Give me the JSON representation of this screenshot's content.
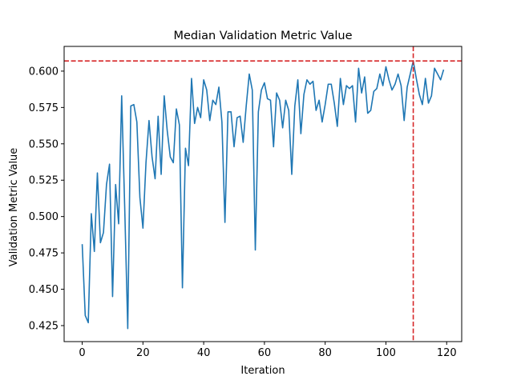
{
  "chart_data": {
    "type": "line",
    "title": "Median Validation Metric Value",
    "xlabel": "Iteration",
    "ylabel": "Validation Metric Value",
    "xlim": [
      -5.95,
      124.95
    ],
    "ylim": [
      0.414,
      0.617
    ],
    "x_ticks": [
      0,
      20,
      40,
      60,
      80,
      100,
      120
    ],
    "y_ticks": [
      0.425,
      0.45,
      0.475,
      0.5,
      0.525,
      0.55,
      0.575,
      0.6
    ],
    "grid": false,
    "legend": "none",
    "series": [
      {
        "color": "#1f77b4",
        "x_start": 0,
        "x_step": 1,
        "values": [
          0.481,
          0.432,
          0.427,
          0.502,
          0.476,
          0.53,
          0.482,
          0.489,
          0.522,
          0.536,
          0.445,
          0.522,
          0.495,
          0.583,
          0.506,
          0.423,
          0.576,
          0.577,
          0.565,
          0.513,
          0.492,
          0.537,
          0.566,
          0.541,
          0.526,
          0.569,
          0.529,
          0.583,
          0.559,
          0.541,
          0.537,
          0.574,
          0.563,
          0.451,
          0.547,
          0.535,
          0.595,
          0.564,
          0.575,
          0.568,
          0.594,
          0.587,
          0.566,
          0.58,
          0.577,
          0.589,
          0.565,
          0.496,
          0.572,
          0.572,
          0.548,
          0.568,
          0.569,
          0.551,
          0.576,
          0.598,
          0.587,
          0.477,
          0.572,
          0.587,
          0.592,
          0.581,
          0.58,
          0.548,
          0.585,
          0.58,
          0.561,
          0.58,
          0.573,
          0.529,
          0.576,
          0.594,
          0.557,
          0.584,
          0.594,
          0.591,
          0.593,
          0.573,
          0.58,
          0.565,
          0.577,
          0.591,
          0.591,
          0.578,
          0.562,
          0.595,
          0.577,
          0.59,
          0.588,
          0.59,
          0.565,
          0.602,
          0.585,
          0.596,
          0.571,
          0.573,
          0.586,
          0.588,
          0.598,
          0.59,
          0.603,
          0.594,
          0.587,
          0.591,
          0.598,
          0.59,
          0.566,
          0.589,
          0.598,
          0.607,
          0.595,
          0.584,
          0.577,
          0.595,
          0.578,
          0.583,
          0.602,
          0.598,
          0.594,
          0.601
        ]
      }
    ],
    "reference_lines": [
      {
        "orientation": "horizontal",
        "value": 0.607,
        "color": "#d62728",
        "style": "dashed"
      },
      {
        "orientation": "vertical",
        "value": 109,
        "color": "#d62728",
        "style": "dashed"
      }
    ]
  }
}
